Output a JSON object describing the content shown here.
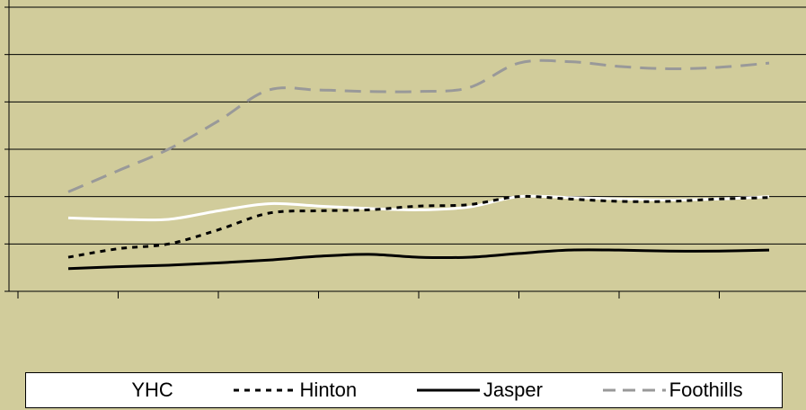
{
  "chart_data": {
    "type": "line",
    "title": "",
    "xlabel": "",
    "ylabel": "",
    "x": [
      1,
      2,
      3,
      4,
      5,
      6,
      7,
      8,
      9,
      10,
      11,
      12,
      13,
      14,
      15
    ],
    "ylim": [
      0,
      6
    ],
    "grid": true,
    "legend_position": "bottom",
    "series": [
      {
        "name": "YHC",
        "color": "#ffffff",
        "style": "solid",
        "values": [
          1.55,
          1.52,
          1.52,
          1.7,
          1.85,
          1.8,
          1.75,
          1.72,
          1.78,
          2.0,
          1.98,
          1.95,
          1.93,
          1.95,
          2.0
        ]
      },
      {
        "name": "Hinton",
        "color": "#000000",
        "style": "dotted",
        "values": [
          0.72,
          0.9,
          1.0,
          1.3,
          1.65,
          1.7,
          1.72,
          1.8,
          1.83,
          2.0,
          1.95,
          1.9,
          1.9,
          1.95,
          1.98
        ]
      },
      {
        "name": "Jasper",
        "color": "#000000",
        "style": "solid",
        "values": [
          0.48,
          0.52,
          0.55,
          0.6,
          0.66,
          0.74,
          0.78,
          0.72,
          0.72,
          0.8,
          0.87,
          0.87,
          0.85,
          0.85,
          0.87
        ]
      },
      {
        "name": "Foothills",
        "color": "#999999",
        "style": "dashed",
        "values": [
          2.1,
          2.55,
          3.0,
          3.6,
          4.25,
          4.25,
          4.22,
          4.22,
          4.3,
          4.82,
          4.85,
          4.75,
          4.7,
          4.73,
          4.82
        ]
      }
    ]
  }
}
